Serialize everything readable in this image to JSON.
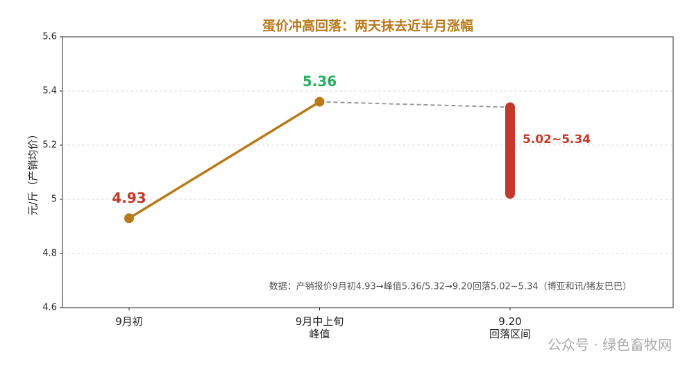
{
  "chart_data": {
    "type": "line",
    "title": "蛋价冲高回落：两天抹去近半月涨幅",
    "y_label": "元/斤（产销均价）",
    "categories": [
      [
        "9月初"
      ],
      [
        "9月中上旬",
        "峰值"
      ],
      [
        "9.20",
        "回落区间"
      ]
    ],
    "series": [
      {
        "color": "#b8791a",
        "values": [
          4.93,
          5.36,
          null
        ],
        "label_colors": [
          "#c0392b",
          "#27ae60",
          null
        ]
      },
      {
        "color": "#999999",
        "dashed": true,
        "values": [
          null,
          5.36,
          5.34
        ]
      }
    ],
    "range": {
      "category_index": 2,
      "low": 5.02,
      "high": 5.34,
      "label": "5.02~5.34",
      "color": "#c0392b"
    },
    "ylim": [
      4.6,
      5.6
    ],
    "yticks": [
      4.6,
      4.8,
      5.0,
      5.2,
      5.4,
      5.6
    ],
    "grid": true,
    "note": "数据：产销报价9月初4.93→峰值5.36/5.32→9.20回落5.02~5.34（博亚和讯/猪友巴巴）",
    "watermark": "公众号 · 绿色畜牧网"
  }
}
